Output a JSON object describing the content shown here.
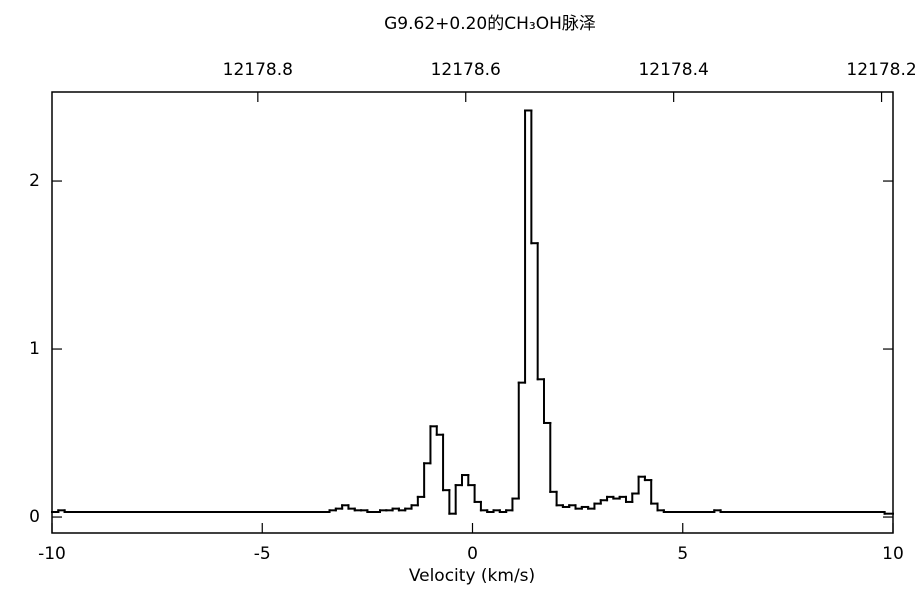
{
  "chart_data": {
    "type": "step",
    "title": "G9.62+0.20的CH₃OH脉泽",
    "xlabel": "Velocity (km/s)",
    "xlim": [
      -10,
      10
    ],
    "xticks": [
      -10,
      -5,
      0,
      5,
      10
    ],
    "x2lim": [
      12178.998,
      12178.189
    ],
    "x2ticks": [
      12178.8,
      12178.6,
      12178.4,
      12178.2
    ],
    "ylim": [
      -0.095,
      2.53
    ],
    "yticks": [
      0,
      1,
      2
    ],
    "color": "#000000",
    "x": [
      -9.925,
      -9.775,
      -9.625,
      -9.475,
      -9.325,
      -9.175,
      -9.025,
      -8.875,
      -8.725,
      -8.575,
      -8.425,
      -8.275,
      -8.125,
      -7.975,
      -7.825,
      -7.675,
      -7.525,
      -7.375,
      -7.225,
      -7.075,
      -6.925,
      -6.775,
      -6.625,
      -6.475,
      -6.325,
      -6.175,
      -6.025,
      -5.875,
      -5.725,
      -5.575,
      -5.425,
      -5.275,
      -5.125,
      -4.975,
      -4.825,
      -4.675,
      -4.525,
      -4.375,
      -4.225,
      -4.075,
      -3.925,
      -3.775,
      -3.625,
      -3.475,
      -3.325,
      -3.175,
      -3.025,
      -2.875,
      -2.725,
      -2.575,
      -2.425,
      -2.275,
      -2.125,
      -1.975,
      -1.825,
      -1.675,
      -1.525,
      -1.375,
      -1.225,
      -1.075,
      -0.925,
      -0.775,
      -0.625,
      -0.475,
      -0.325,
      -0.175,
      -0.025,
      0.125,
      0.275,
      0.425,
      0.575,
      0.725,
      0.875,
      1.025,
      1.175,
      1.325,
      1.475,
      1.625,
      1.775,
      1.925,
      2.075,
      2.225,
      2.375,
      2.525,
      2.675,
      2.825,
      2.975,
      3.125,
      3.275,
      3.425,
      3.575,
      3.725,
      3.875,
      4.025,
      4.175,
      4.325,
      4.475,
      4.625,
      4.775,
      4.925,
      5.075,
      5.225,
      5.375,
      5.525,
      5.675,
      5.825,
      5.975,
      6.125,
      6.275,
      6.425,
      6.575,
      6.725,
      6.875,
      7.025,
      7.175,
      7.325,
      7.475,
      7.625,
      7.775,
      7.925,
      8.075,
      8.225,
      8.375,
      8.525,
      8.675,
      8.825,
      8.975,
      9.125,
      9.275,
      9.425,
      9.575,
      9.725,
      9.875
    ],
    "values": [
      0.03,
      0.04,
      0.03,
      0.03,
      0.03,
      0.03,
      0.03,
      0.03,
      0.03,
      0.03,
      0.03,
      0.03,
      0.03,
      0.03,
      0.03,
      0.03,
      0.03,
      0.03,
      0.03,
      0.03,
      0.03,
      0.03,
      0.03,
      0.03,
      0.03,
      0.03,
      0.03,
      0.03,
      0.03,
      0.03,
      0.03,
      0.03,
      0.03,
      0.03,
      0.03,
      0.03,
      0.03,
      0.03,
      0.03,
      0.03,
      0.03,
      0.03,
      0.03,
      0.03,
      0.04,
      0.05,
      0.07,
      0.05,
      0.04,
      0.04,
      0.03,
      0.03,
      0.04,
      0.04,
      0.05,
      0.04,
      0.05,
      0.07,
      0.12,
      0.32,
      0.54,
      0.49,
      0.16,
      0.02,
      0.19,
      0.25,
      0.19,
      0.09,
      0.04,
      0.03,
      0.04,
      0.03,
      0.04,
      0.11,
      0.8,
      2.42,
      1.63,
      0.82,
      0.56,
      0.15,
      0.07,
      0.06,
      0.07,
      0.05,
      0.06,
      0.05,
      0.08,
      0.1,
      0.12,
      0.11,
      0.12,
      0.09,
      0.14,
      0.24,
      0.22,
      0.08,
      0.04,
      0.03,
      0.03,
      0.03,
      0.03,
      0.03,
      0.03,
      0.03,
      0.03,
      0.04,
      0.03,
      0.03,
      0.03,
      0.03,
      0.03,
      0.03,
      0.03,
      0.03,
      0.03,
      0.03,
      0.03,
      0.03,
      0.03,
      0.03,
      0.03,
      0.03,
      0.03,
      0.03,
      0.03,
      0.03,
      0.03,
      0.03,
      0.03,
      0.03,
      0.03,
      0.03,
      0.02
    ]
  }
}
